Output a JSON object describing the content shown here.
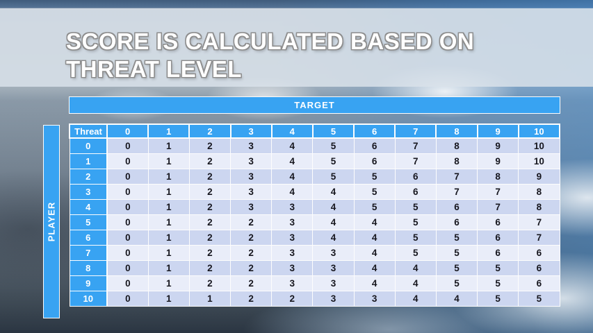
{
  "slide": {
    "title_lines": [
      "SCORE IS CALCULATED BASED ON",
      "THREAT LEVEL"
    ]
  },
  "table": {
    "target_label": "TARGET",
    "player_label": "PLAYER",
    "corner_label": "Threat",
    "column_headers": [
      "0",
      "1",
      "2",
      "3",
      "4",
      "5",
      "6",
      "7",
      "8",
      "9",
      "10"
    ],
    "rows": [
      {
        "threat": "0",
        "values": [
          0,
          1,
          2,
          3,
          4,
          5,
          6,
          7,
          8,
          9,
          10
        ]
      },
      {
        "threat": "1",
        "values": [
          0,
          1,
          2,
          3,
          4,
          5,
          6,
          7,
          8,
          9,
          10
        ]
      },
      {
        "threat": "2",
        "values": [
          0,
          1,
          2,
          3,
          4,
          5,
          5,
          6,
          7,
          8,
          9
        ]
      },
      {
        "threat": "3",
        "values": [
          0,
          1,
          2,
          3,
          4,
          4,
          5,
          6,
          7,
          7,
          8
        ]
      },
      {
        "threat": "4",
        "values": [
          0,
          1,
          2,
          3,
          3,
          4,
          5,
          5,
          6,
          7,
          8
        ]
      },
      {
        "threat": "5",
        "values": [
          0,
          1,
          2,
          2,
          3,
          4,
          4,
          5,
          6,
          6,
          7
        ]
      },
      {
        "threat": "6",
        "values": [
          0,
          1,
          2,
          2,
          3,
          4,
          4,
          5,
          5,
          6,
          7
        ]
      },
      {
        "threat": "7",
        "values": [
          0,
          1,
          2,
          2,
          3,
          3,
          4,
          5,
          5,
          6,
          6
        ]
      },
      {
        "threat": "8",
        "values": [
          0,
          1,
          2,
          2,
          3,
          3,
          4,
          4,
          5,
          5,
          6
        ]
      },
      {
        "threat": "9",
        "values": [
          0,
          1,
          2,
          2,
          3,
          3,
          4,
          4,
          5,
          5,
          6
        ]
      },
      {
        "threat": "10",
        "values": [
          0,
          1,
          1,
          2,
          2,
          3,
          3,
          4,
          4,
          5,
          5
        ]
      }
    ]
  },
  "colors": {
    "accent_blue": "#38a3f2",
    "row_even_bg": "#ccd6f0",
    "row_odd_bg": "#e9edf9",
    "cell_text": "#16161e",
    "header_text": "#ffffff",
    "title_text": "#ffffff",
    "title_outline": "#8d8d8d"
  }
}
